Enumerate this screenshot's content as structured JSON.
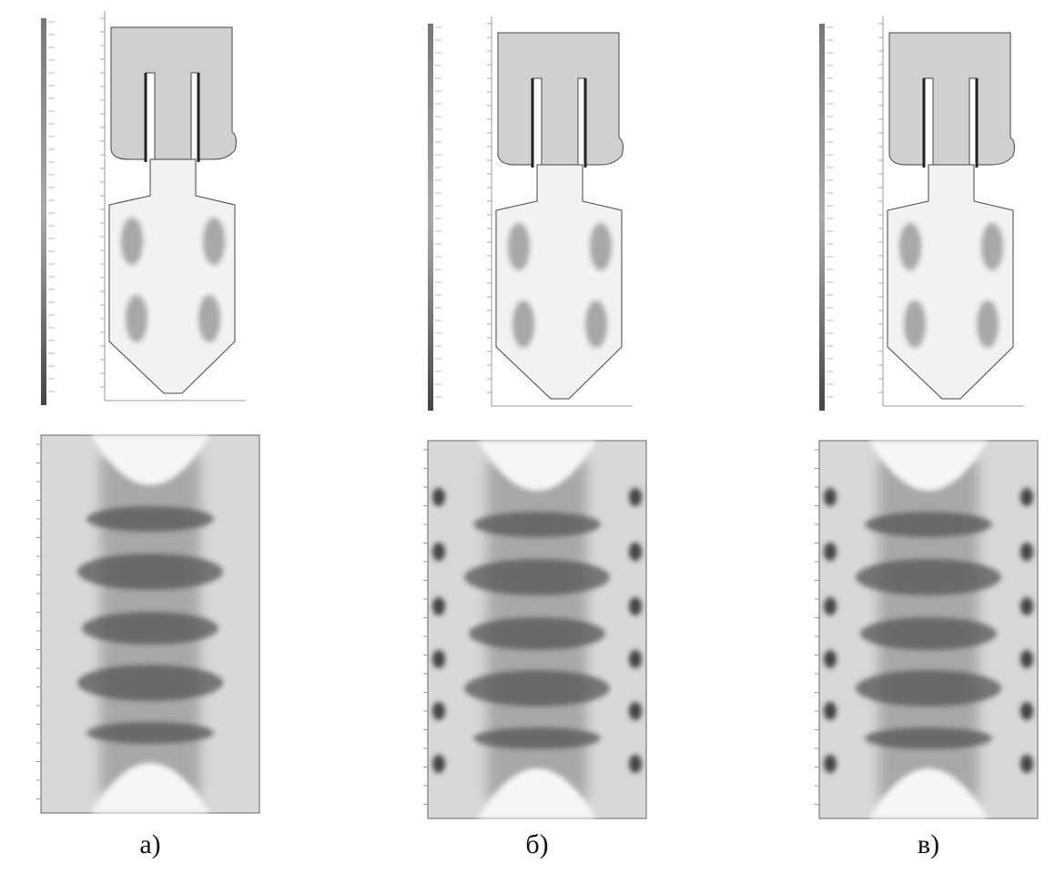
{
  "panels": [
    {
      "label": "а)"
    },
    {
      "label": "б)"
    },
    {
      "label": "в)"
    }
  ]
}
